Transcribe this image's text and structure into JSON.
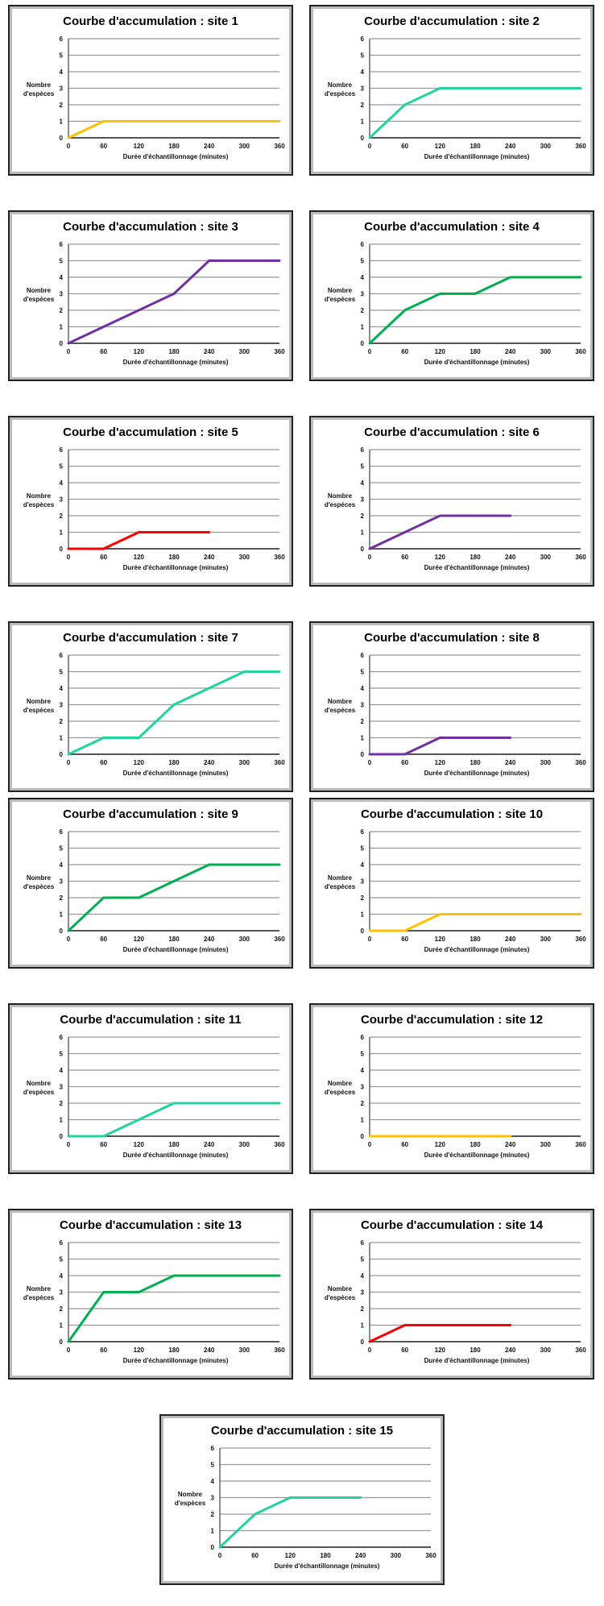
{
  "chart_data": [
    {
      "type": "line",
      "title": "Courbe d'accumulation : site 1",
      "xlabel": "Durée d'échantillonnage (minutes)",
      "ylabel_lines": [
        "Nombre",
        "d'espèces"
      ],
      "x": [
        0,
        60,
        120,
        180,
        240,
        300,
        360
      ],
      "values": [
        0,
        1,
        1,
        1,
        1,
        1,
        1
      ],
      "color": "#FFC000",
      "ylim": [
        0,
        6
      ],
      "xlim": [
        0,
        360
      ],
      "grid": true
    },
    {
      "type": "line",
      "title": "Courbe d'accumulation : site 2",
      "xlabel": "Durée d'échantillonnage (minutes)",
      "ylabel_lines": [
        "Nombre",
        "d'espèces"
      ],
      "x": [
        0,
        60,
        120,
        180,
        240,
        300,
        360
      ],
      "values": [
        0,
        2,
        3,
        3,
        3,
        3,
        3
      ],
      "color": "#22D3A0",
      "ylim": [
        0,
        6
      ],
      "xlim": [
        0,
        360
      ],
      "grid": true
    },
    {
      "type": "line",
      "title": "Courbe d'accumulation : site 3",
      "xlabel": "Durée d'échantillonnage (minutes)",
      "ylabel_lines": [
        "Nombre",
        "d'espèces"
      ],
      "x": [
        0,
        60,
        120,
        180,
        240,
        300,
        360
      ],
      "values": [
        0,
        1,
        2,
        3,
        5,
        5,
        5
      ],
      "color": "#7030A0",
      "ylim": [
        0,
        6
      ],
      "xlim": [
        0,
        360
      ],
      "grid": true
    },
    {
      "type": "line",
      "title": "Courbe d'accumulation : site 4",
      "xlabel": "Durée d'échantillonnage (minutes)",
      "ylabel_lines": [
        "Nombre",
        "d'espèces"
      ],
      "x": [
        0,
        60,
        120,
        180,
        240,
        300,
        360
      ],
      "values": [
        0,
        2,
        3,
        3,
        4,
        4,
        4
      ],
      "color": "#00B050",
      "ylim": [
        0,
        6
      ],
      "xlim": [
        0,
        360
      ],
      "grid": true
    },
    {
      "type": "line",
      "title": "Courbe d'accumulation : site 5",
      "xlabel": "Durée d'échantillonnage (minutes)",
      "ylabel_lines": [
        "Nombre",
        "d'espèces"
      ],
      "x": [
        0,
        60,
        120,
        180,
        240
      ],
      "values": [
        0,
        0,
        1,
        1,
        1
      ],
      "color": "#FF0000",
      "ylim": [
        0,
        6
      ],
      "xlim": [
        0,
        360
      ],
      "grid": true
    },
    {
      "type": "line",
      "title": "Courbe d'accumulation : site 6",
      "xlabel": "Durée d'échantillonnage (minutes)",
      "ylabel_lines": [
        "Nombre",
        "d'espèces"
      ],
      "x": [
        0,
        60,
        120,
        180,
        240
      ],
      "values": [
        0,
        1,
        2,
        2,
        2
      ],
      "color": "#7030A0",
      "ylim": [
        0,
        6
      ],
      "xlim": [
        0,
        360
      ],
      "grid": true
    },
    {
      "type": "line",
      "title": "Courbe d'accumulation : site 7",
      "xlabel": "Durée d'échantillonnage (minutes)",
      "ylabel_lines": [
        "Nombre",
        "d'espèces"
      ],
      "x": [
        0,
        60,
        120,
        180,
        240,
        300,
        360
      ],
      "values": [
        0,
        1,
        1,
        3,
        4,
        5,
        5
      ],
      "color": "#22D3A0",
      "ylim": [
        0,
        6
      ],
      "xlim": [
        0,
        360
      ],
      "grid": true
    },
    {
      "type": "line",
      "title": "Courbe d'accumulation : site 8",
      "xlabel": "Durée d'échantillonnage (minutes)",
      "ylabel_lines": [
        "Nombre",
        "d'espèces"
      ],
      "x": [
        0,
        60,
        120,
        180,
        240
      ],
      "values": [
        0,
        0,
        1,
        1,
        1
      ],
      "color": "#7030A0",
      "ylim": [
        0,
        6
      ],
      "xlim": [
        0,
        360
      ],
      "grid": true
    },
    {
      "type": "line",
      "title": "Courbe d'accumulation : site 9",
      "xlabel": "Durée d'échantillonnage (minutes)",
      "ylabel_lines": [
        "Nombre",
        "d'espèces"
      ],
      "x": [
        0,
        60,
        120,
        180,
        240,
        300,
        360
      ],
      "values": [
        0,
        2,
        2,
        3,
        4,
        4,
        4
      ],
      "color": "#00B050",
      "ylim": [
        0,
        6
      ],
      "xlim": [
        0,
        360
      ],
      "grid": true
    },
    {
      "type": "line",
      "title": "Courbe d'accumulation : site 10",
      "xlabel": "Durée d'échantillonnage (minutes)",
      "ylabel_lines": [
        "Nombre",
        "d'espèces"
      ],
      "x": [
        0,
        60,
        120,
        180,
        240,
        300,
        360
      ],
      "values": [
        0,
        0,
        1,
        1,
        1,
        1,
        1
      ],
      "color": "#FFC000",
      "ylim": [
        0,
        6
      ],
      "xlim": [
        0,
        360
      ],
      "grid": true
    },
    {
      "type": "line",
      "title": "Courbe d'accumulation : site 11",
      "xlabel": "Durée d'échantillonnage (minutes)",
      "ylabel_lines": [
        "Nombre",
        "d'espèces"
      ],
      "x": [
        0,
        60,
        120,
        180,
        240,
        300,
        360
      ],
      "values": [
        0,
        0,
        1,
        2,
        2,
        2,
        2
      ],
      "color": "#22D3A0",
      "ylim": [
        0,
        6
      ],
      "xlim": [
        0,
        360
      ],
      "grid": true
    },
    {
      "type": "line",
      "title": "Courbe d'accumulation : site 12",
      "xlabel": "Durée d'échantillonnage (minutes)",
      "ylabel_lines": [
        "Nombre",
        "d'espèces"
      ],
      "x": [
        0,
        60,
        120,
        180,
        240
      ],
      "values": [
        0,
        0,
        0,
        0,
        0
      ],
      "color": "#FFC000",
      "ylim": [
        0,
        6
      ],
      "xlim": [
        0,
        360
      ],
      "grid": true
    },
    {
      "type": "line",
      "title": "Courbe d'accumulation : site 13",
      "xlabel": "Durée d'échantillonnage (minutes)",
      "ylabel_lines": [
        "Nombre",
        "d'espèces"
      ],
      "x": [
        0,
        60,
        120,
        180,
        240,
        300,
        360
      ],
      "values": [
        0,
        3,
        3,
        4,
        4,
        4,
        4
      ],
      "color": "#00B050",
      "ylim": [
        0,
        6
      ],
      "xlim": [
        0,
        360
      ],
      "grid": true
    },
    {
      "type": "line",
      "title": "Courbe d'accumulation : site 14",
      "xlabel": "Durée d'échantillonnage (minutes)",
      "ylabel_lines": [
        "Nombre",
        "d'espèces"
      ],
      "x": [
        0,
        60,
        120,
        180,
        240
      ],
      "values": [
        0,
        1,
        1,
        1,
        1
      ],
      "color": "#FF0000",
      "ylim": [
        0,
        6
      ],
      "xlim": [
        0,
        360
      ],
      "grid": true
    },
    {
      "type": "line",
      "title": "Courbe d'accumulation : site 15",
      "xlabel": "Durée d'échantillonnage (minutes)",
      "ylabel_lines": [
        "Nombre",
        "d'espèces"
      ],
      "x": [
        0,
        60,
        120,
        180,
        240
      ],
      "values": [
        0,
        2,
        3,
        3,
        3
      ],
      "color": "#22D3A0",
      "ylim": [
        0,
        6
      ],
      "xlim": [
        0,
        360
      ],
      "grid": true
    }
  ],
  "x_ticks": [
    "0",
    "60",
    "120",
    "180",
    "240",
    "300",
    "360"
  ],
  "y_ticks": [
    "0",
    "1",
    "2",
    "3",
    "4",
    "5",
    "6"
  ]
}
